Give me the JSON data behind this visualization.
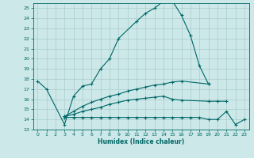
{
  "xlabel": "Humidex (Indice chaleur)",
  "background_color": "#cce8e8",
  "grid_color": "#aacccc",
  "line_color": "#006666",
  "ylim": [
    13,
    25.5
  ],
  "xlim": [
    -0.5,
    23.5
  ],
  "yticks": [
    13,
    14,
    15,
    16,
    17,
    18,
    19,
    20,
    21,
    22,
    23,
    24,
    25
  ],
  "xticks": [
    0,
    1,
    2,
    3,
    4,
    5,
    6,
    7,
    8,
    9,
    10,
    11,
    12,
    13,
    14,
    15,
    16,
    17,
    18,
    19,
    20,
    21,
    22,
    23
  ],
  "line1_x": [
    0,
    1,
    3,
    4,
    5,
    6,
    7,
    8,
    9,
    11,
    12,
    13,
    14,
    15,
    16,
    17,
    18,
    19
  ],
  "line1_y": [
    17.8,
    17.0,
    13.5,
    16.3,
    17.3,
    17.5,
    19.0,
    20.0,
    22.0,
    23.7,
    24.5,
    25.0,
    25.7,
    25.7,
    24.3,
    22.3,
    19.3,
    17.5
  ],
  "line2_x": [
    3,
    4,
    5,
    6,
    7,
    8,
    9,
    10,
    11,
    12,
    13,
    14,
    15,
    16,
    19
  ],
  "line2_y": [
    14.3,
    14.8,
    15.3,
    15.7,
    16.0,
    16.3,
    16.5,
    16.8,
    17.0,
    17.2,
    17.4,
    17.5,
    17.7,
    17.8,
    17.5
  ],
  "line3_x": [
    3,
    4,
    5,
    6,
    7,
    8,
    9,
    10,
    11,
    12,
    13,
    14,
    15,
    16,
    19,
    20,
    21
  ],
  "line3_y": [
    14.3,
    14.5,
    14.8,
    15.0,
    15.2,
    15.5,
    15.7,
    15.9,
    16.0,
    16.1,
    16.2,
    16.3,
    16.0,
    15.9,
    15.8,
    15.8,
    15.8
  ],
  "line4_x": [
    3,
    4,
    5,
    6,
    7,
    8,
    9,
    10,
    11,
    12,
    13,
    14,
    15,
    16,
    17,
    18,
    19,
    20,
    21,
    22,
    23
  ],
  "line4_y": [
    14.2,
    14.2,
    14.2,
    14.2,
    14.2,
    14.2,
    14.2,
    14.2,
    14.2,
    14.2,
    14.2,
    14.2,
    14.2,
    14.2,
    14.2,
    14.2,
    14.0,
    14.0,
    14.8,
    13.5,
    14.0
  ]
}
